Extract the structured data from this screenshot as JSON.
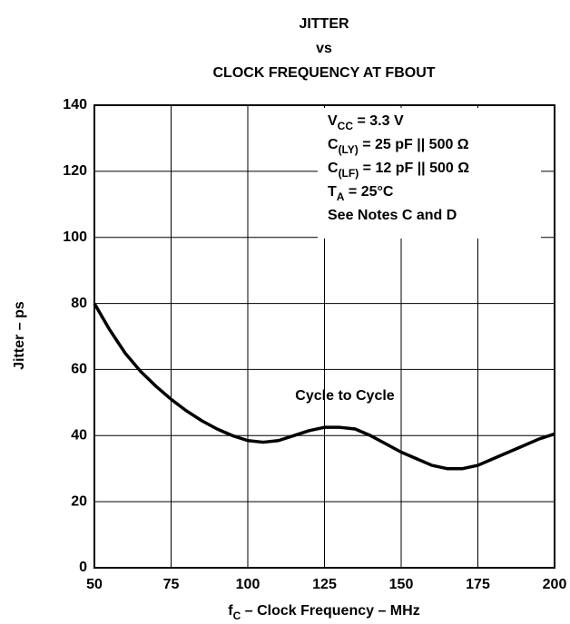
{
  "chart_data": {
    "type": "line",
    "title": [
      "JITTER",
      "vs",
      "CLOCK FREQUENCY AT FBOUT"
    ],
    "ylabel": "Jitter – ps",
    "xlabel": {
      "main": "f",
      "sub": "C",
      "tail": " – Clock Frequency – MHz"
    },
    "annotation": [
      {
        "main": "V",
        "sub": "CC",
        "tail": " = 3.3 V"
      },
      {
        "main": "C",
        "sub": "(LY)",
        "tail": " = 25 pF || 500 Ω"
      },
      {
        "main": "C",
        "sub": "(LF)",
        "tail": " = 12 pF || 500 Ω"
      },
      {
        "main": "T",
        "sub": "A",
        "tail": " = 25°C"
      },
      {
        "main": "See Notes C and D"
      }
    ],
    "x": [
      50,
      55,
      60,
      65,
      70,
      75,
      80,
      85,
      90,
      95,
      100,
      105,
      110,
      115,
      120,
      125,
      130,
      135,
      140,
      145,
      150,
      155,
      160,
      165,
      170,
      175,
      180,
      185,
      190,
      195,
      200
    ],
    "series": [
      {
        "name": "Cycle to Cycle",
        "color": "#000000",
        "values": [
          80,
          72,
          65,
          59.5,
          55,
          51,
          47.5,
          44.5,
          42,
          40,
          38.5,
          38,
          38.5,
          40,
          41.5,
          42.5,
          42.5,
          42,
          40,
          37.5,
          35,
          33,
          31,
          30,
          30,
          31,
          33,
          35,
          37,
          39,
          40.5
        ]
      }
    ],
    "xlim": [
      50,
      200
    ],
    "ylim": [
      0,
      140
    ],
    "xticks": [
      50,
      75,
      100,
      125,
      150,
      175,
      200
    ],
    "yticks": [
      0,
      20,
      40,
      60,
      80,
      100,
      120,
      140
    ],
    "grid": true
  }
}
